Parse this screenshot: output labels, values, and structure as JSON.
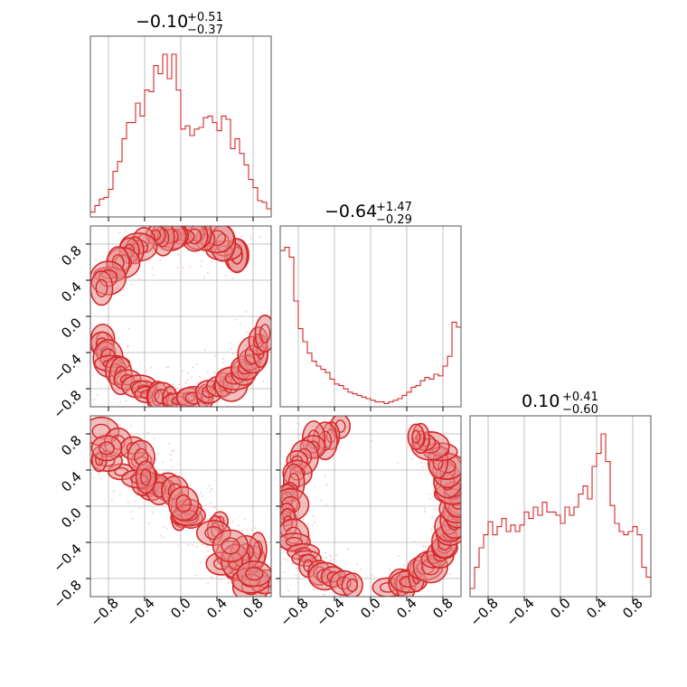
{
  "chart_data": [
    {
      "panel": "x1 histogram",
      "type": "histogram",
      "title": {
        "value": "−0.10",
        "upper": "+0.51",
        "lower": "−0.37"
      },
      "xlim": [
        -1,
        1
      ],
      "xticks": [
        -0.8,
        -0.4,
        0.0,
        0.4,
        0.8
      ],
      "grid": true,
      "bins": 40,
      "bin_range": [
        -1,
        1
      ],
      "relative_heights": [
        0.03,
        0.07,
        0.11,
        0.12,
        0.17,
        0.28,
        0.34,
        0.48,
        0.58,
        0.58,
        0.7,
        0.62,
        0.78,
        0.77,
        0.93,
        0.88,
        1.0,
        0.85,
        1.0,
        0.78,
        0.54,
        0.56,
        0.5,
        0.54,
        0.55,
        0.61,
        0.62,
        0.58,
        0.53,
        0.62,
        0.6,
        0.42,
        0.48,
        0.39,
        0.32,
        0.23,
        0.18,
        0.1,
        0.09,
        0.05
      ]
    },
    {
      "panel": "x2 vs x1 contour",
      "type": "contour",
      "xlim": [
        -1,
        1
      ],
      "ylim": [
        -1,
        1
      ],
      "xticks": [
        -0.8,
        -0.4,
        0.0,
        0.4,
        0.8
      ],
      "yticks": [
        -0.8,
        -0.4,
        0.0,
        0.4,
        0.8
      ],
      "grid": true,
      "description_shape": "upper arc (x -0.8..0.6, y 0.5..1.0) and lower arc (x -0.8..0.9, y -1.0..-0.3)"
    },
    {
      "panel": "x2 histogram",
      "type": "histogram",
      "title": {
        "value": "−0.64",
        "upper": "+1.47",
        "lower": "−0.29"
      },
      "xlim": [
        -1,
        1
      ],
      "xticks": [
        -0.8,
        -0.4,
        0.0,
        0.4,
        0.8
      ],
      "grid": true,
      "bins": 40,
      "bin_range": [
        -1,
        1
      ],
      "relative_heights": [
        0.96,
        0.98,
        0.92,
        0.65,
        0.48,
        0.4,
        0.33,
        0.28,
        0.25,
        0.23,
        0.21,
        0.17,
        0.14,
        0.13,
        0.11,
        0.09,
        0.08,
        0.07,
        0.06,
        0.05,
        0.04,
        0.03,
        0.03,
        0.02,
        0.03,
        0.04,
        0.05,
        0.07,
        0.09,
        0.12,
        0.13,
        0.16,
        0.18,
        0.17,
        0.2,
        0.19,
        0.25,
        0.31,
        0.52,
        0.49
      ]
    },
    {
      "panel": "x3 vs x1 contour",
      "type": "contour",
      "xlim": [
        -1,
        1
      ],
      "ylim": [
        -1,
        1
      ],
      "xticks": [
        -0.8,
        -0.4,
        0.0,
        0.4,
        0.8
      ],
      "yticks": [
        -0.8,
        -0.4,
        0.0,
        0.4,
        0.8
      ],
      "grid": true
    },
    {
      "panel": "x3 vs x2 contour",
      "type": "contour",
      "xlim": [
        -1,
        1
      ],
      "ylim": [
        -1,
        1
      ],
      "xticks": [
        -0.8,
        -0.4,
        0.0,
        0.4,
        0.8
      ],
      "yticks": [
        -0.8,
        -0.4,
        0.0,
        0.4,
        0.8
      ],
      "grid": true
    },
    {
      "panel": "x3 histogram",
      "type": "histogram",
      "title": {
        "value": "0.10",
        "upper": "+0.41",
        "lower": "−0.60"
      },
      "xlim": [
        -1,
        1
      ],
      "xticks": [
        -0.8,
        -0.4,
        0.0,
        0.4,
        0.8
      ],
      "grid": true,
      "bins": 40,
      "bin_range": [
        -1,
        1
      ],
      "relative_heights": [
        0.05,
        0.18,
        0.3,
        0.38,
        0.46,
        0.38,
        0.43,
        0.48,
        0.4,
        0.44,
        0.4,
        0.44,
        0.52,
        0.48,
        0.55,
        0.5,
        0.58,
        0.52,
        0.52,
        0.5,
        0.45,
        0.55,
        0.5,
        0.55,
        0.63,
        0.68,
        0.6,
        0.8,
        0.88,
        1.0,
        0.83,
        0.56,
        0.45,
        0.4,
        0.38,
        0.4,
        0.43,
        0.38,
        0.18,
        0.12
      ]
    }
  ],
  "style": {
    "color": "#d62728",
    "fill": "#e68a8b",
    "grid": "#b0b0b0"
  },
  "axis_labels": {
    "m08": "−0.8",
    "m04": "−0.4",
    "z": "0.0",
    "p04": "0.4",
    "p08": "0.8"
  }
}
